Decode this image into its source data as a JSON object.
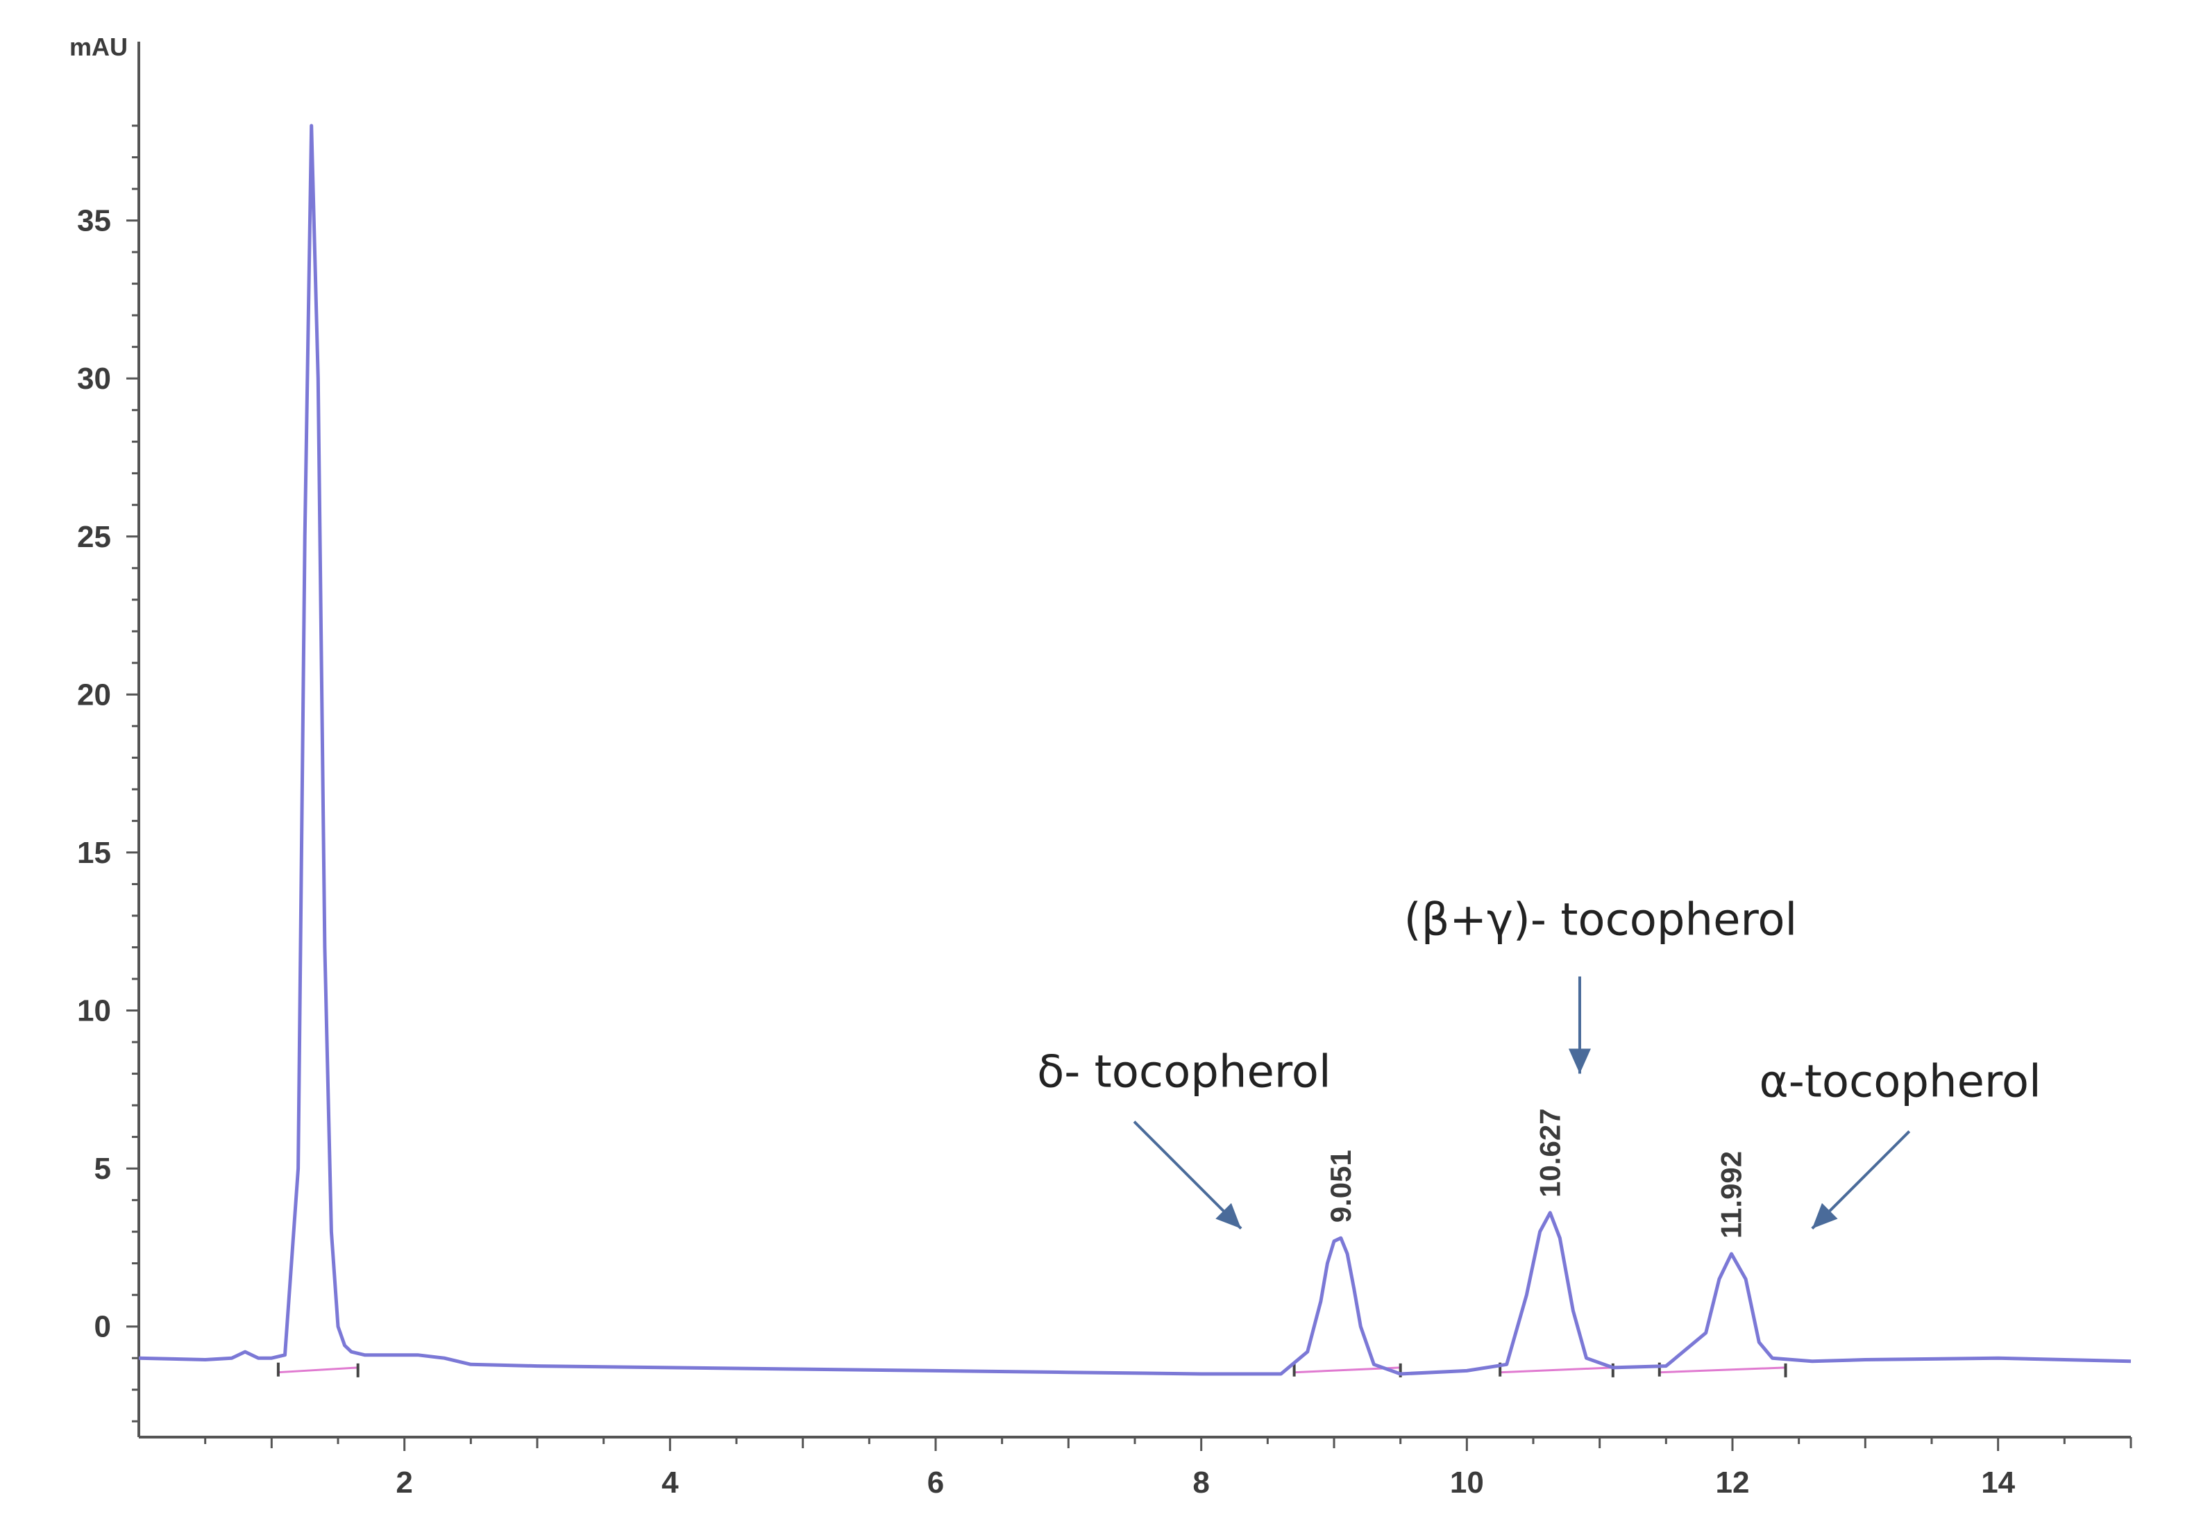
{
  "chart_data": {
    "type": "line",
    "y_unit_label": "mAU",
    "xlim": [
      0,
      15
    ],
    "ylim": [
      -3.5,
      40
    ],
    "x_ticks": [
      2,
      4,
      6,
      8,
      10,
      12,
      14
    ],
    "x_tick_labels": [
      "2",
      "4",
      "6",
      "8",
      "10",
      "12",
      "14"
    ],
    "y_ticks": [
      0,
      5,
      10,
      15,
      20,
      25,
      30,
      35
    ],
    "y_tick_labels": [
      "0",
      "5",
      "10",
      "15",
      "20",
      "25",
      "30",
      "35"
    ],
    "grid": false,
    "series": [
      {
        "color": "#7b78d6",
        "x": [
          0.0,
          0.5,
          0.7,
          0.8,
          0.9,
          1.0,
          1.1,
          1.2,
          1.25,
          1.3,
          1.35,
          1.4,
          1.45,
          1.5,
          1.55,
          1.6,
          1.7,
          1.9,
          2.1,
          2.3,
          2.5,
          3.0,
          4.0,
          5.0,
          6.0,
          7.0,
          8.0,
          8.6,
          8.8,
          8.9,
          8.95,
          9.0,
          9.051,
          9.1,
          9.15,
          9.2,
          9.3,
          9.5,
          10.0,
          10.3,
          10.45,
          10.55,
          10.627,
          10.7,
          10.8,
          10.9,
          11.1,
          11.5,
          11.8,
          11.9,
          11.992,
          12.1,
          12.2,
          12.3,
          12.6,
          13.0,
          14.0,
          15.0
        ],
        "y": [
          -1.0,
          -1.05,
          -1.0,
          -0.8,
          -1.0,
          -1.0,
          -0.9,
          5.0,
          25.0,
          38.0,
          30.0,
          12.0,
          3.0,
          0.0,
          -0.6,
          -0.8,
          -0.9,
          -0.9,
          -0.9,
          -1.0,
          -1.2,
          -1.25,
          -1.3,
          -1.35,
          -1.4,
          -1.45,
          -1.5,
          -1.5,
          -0.8,
          0.8,
          2.0,
          2.7,
          2.8,
          2.3,
          1.2,
          0.0,
          -1.2,
          -1.5,
          -1.4,
          -1.2,
          1.0,
          3.0,
          3.6,
          2.8,
          0.5,
          -1.0,
          -1.3,
          -1.25,
          -0.2,
          1.5,
          2.3,
          1.5,
          -0.5,
          -1.0,
          -1.1,
          -1.05,
          -1.0,
          -1.1
        ]
      }
    ],
    "peak_labels": [
      {
        "x": 9.051,
        "y": 2.8,
        "text": "9.051"
      },
      {
        "x": 10.627,
        "y": 3.6,
        "text": "10.627"
      },
      {
        "x": 11.992,
        "y": 2.3,
        "text": "11.992"
      }
    ],
    "annotations": [
      {
        "text": "δ- tocopherol",
        "target_x": 8.3,
        "target_y": 3.1,
        "direction": "down-right"
      },
      {
        "text": "(β+γ)- tocopherol",
        "target_x": 10.85,
        "target_y": 8.0,
        "direction": "down"
      },
      {
        "text": "α-tocopherol",
        "target_x": 12.6,
        "target_y": 3.1,
        "direction": "down-left"
      }
    ]
  }
}
